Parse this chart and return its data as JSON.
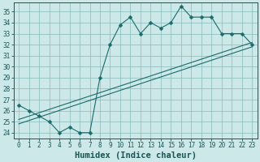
{
  "xlabel": "Humidex (Indice chaleur)",
  "bg_color": "#cce8e8",
  "grid_color": "#88bbbb",
  "line_color": "#1a6b6b",
  "marker_color": "#1a6b6b",
  "xlim": [
    -0.5,
    23.5
  ],
  "ylim": [
    23.5,
    35.8
  ],
  "xticks": [
    0,
    1,
    2,
    3,
    4,
    5,
    6,
    7,
    8,
    9,
    10,
    11,
    12,
    13,
    14,
    15,
    16,
    17,
    18,
    19,
    20,
    21,
    22,
    23
  ],
  "yticks": [
    24,
    25,
    26,
    27,
    28,
    29,
    30,
    31,
    32,
    33,
    34,
    35
  ],
  "series1_x": [
    0,
    1,
    2,
    3,
    4,
    5,
    6,
    7,
    8,
    9,
    10,
    11,
    12,
    13,
    14,
    15,
    16,
    17,
    18,
    19,
    20,
    21,
    22,
    23
  ],
  "series1_y": [
    26.5,
    26.0,
    25.5,
    25.0,
    24.0,
    24.5,
    24.0,
    24.0,
    29.0,
    32.0,
    33.8,
    34.5,
    33.0,
    34.0,
    33.5,
    34.0,
    35.5,
    34.5,
    34.5,
    34.5,
    33.0,
    33.0,
    33.0,
    32.0
  ],
  "series2_x": [
    0,
    23
  ],
  "series2_y": [
    25.2,
    32.2
  ],
  "series3_x": [
    0,
    23
  ],
  "series3_y": [
    24.8,
    31.8
  ],
  "tick_fontsize": 5.5,
  "xlabel_fontsize": 7.5
}
